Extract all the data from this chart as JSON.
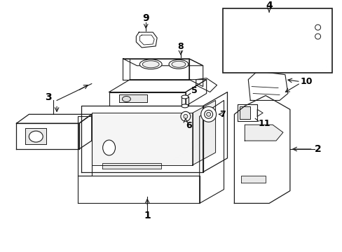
{
  "background": "#ffffff",
  "line_color": "#1a1a1a",
  "label_color": "#000000",
  "label_fontsize": 10,
  "figsize": [
    4.89,
    3.6
  ],
  "dpi": 100,
  "xlim": [
    0,
    489
  ],
  "ylim": [
    0,
    360
  ]
}
